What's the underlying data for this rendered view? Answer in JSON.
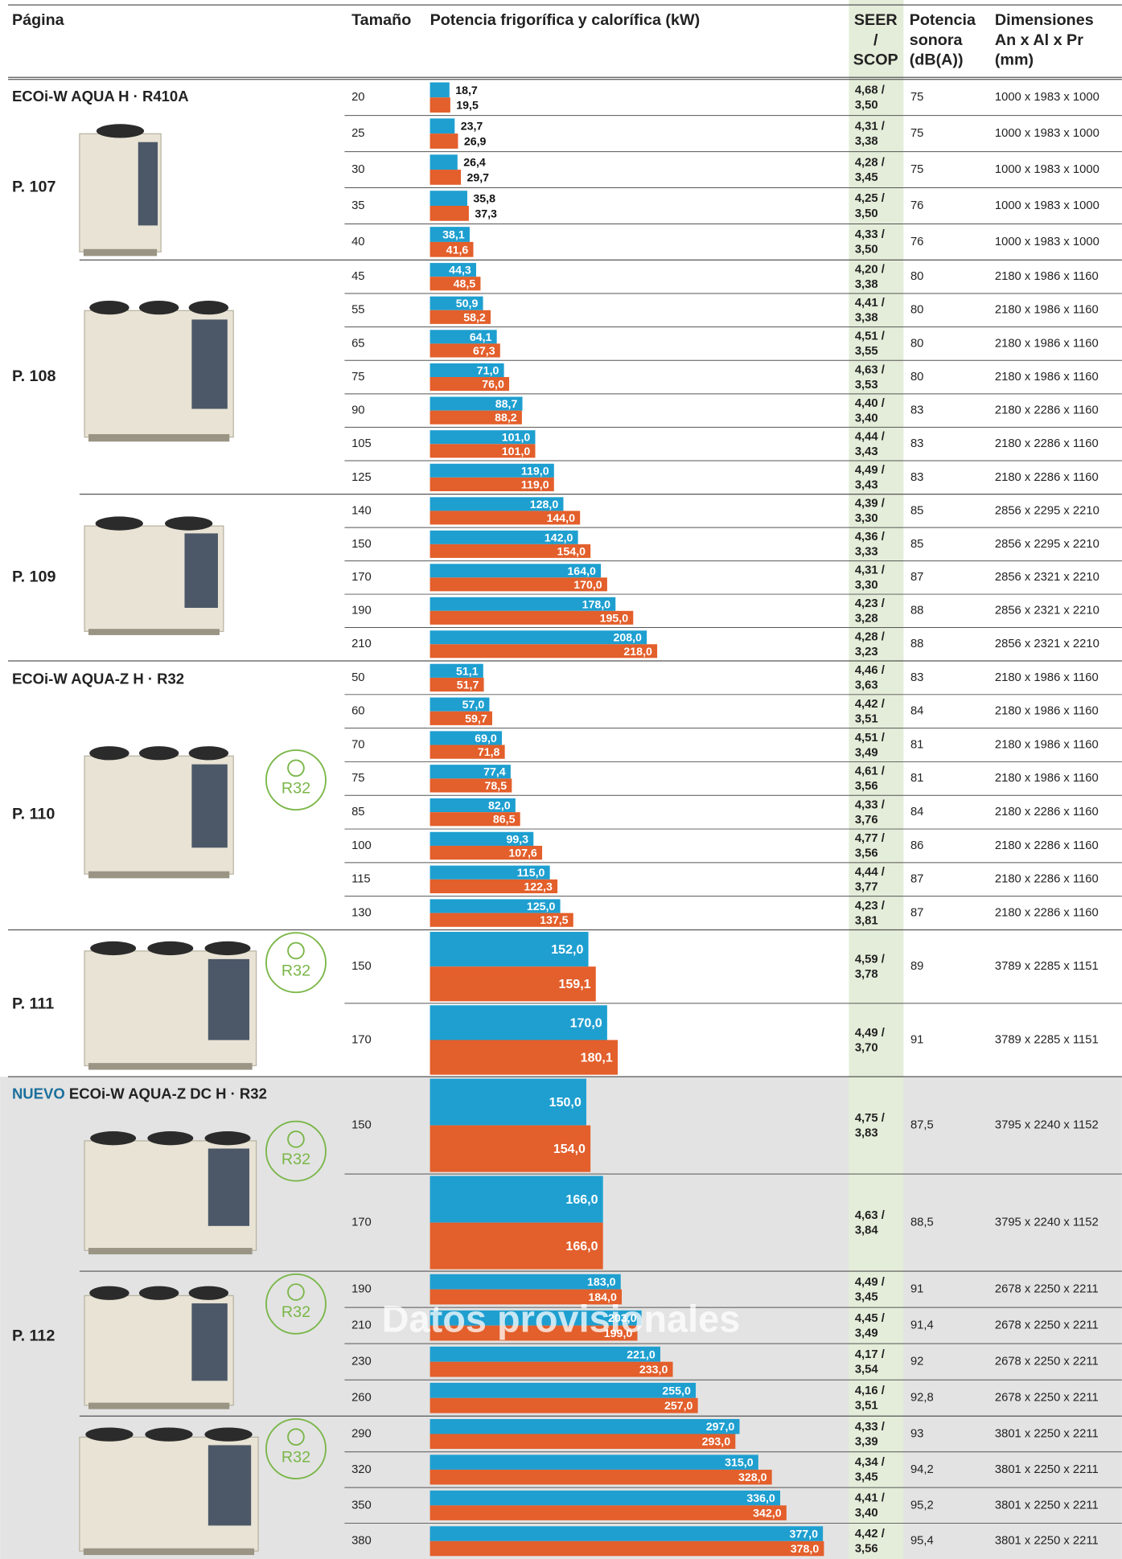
{
  "header": {
    "page": "Página",
    "size": "Tamaño",
    "power": "Potencia frigorífica y calorífica (kW)",
    "seer": [
      "SEER",
      "/",
      "SCOP"
    ],
    "noise": [
      "Potencia",
      "sonora",
      "(dB(A))"
    ],
    "dims": [
      "Dimensiones",
      "An x Al x Pr",
      "(mm)"
    ]
  },
  "groups": [
    {
      "title": "ECOi-W AQUA H · R410A",
      "page": "P. 107",
      "rows": [
        {
          "size": 20,
          "cooling": {
            "value": 18.7,
            "label": "18,7"
          },
          "heating": {
            "value": 19.5,
            "label": "19,5"
          },
          "seer": "4,68 /",
          "scop": "3,50",
          "noise": "75",
          "dims": "1000 x 1983 x 1000"
        },
        {
          "size": 25,
          "cooling": {
            "value": 23.7,
            "label": "23,7"
          },
          "heating": {
            "value": 26.9,
            "label": "26,9"
          },
          "seer": "4,31 /",
          "scop": "3,38",
          "noise": "75",
          "dims": "1000 x 1983 x 1000"
        },
        {
          "size": 30,
          "cooling": {
            "value": 26.4,
            "label": "26,4"
          },
          "heating": {
            "value": 29.7,
            "label": "29,7"
          },
          "seer": "4,28 /",
          "scop": "3,45",
          "noise": "75",
          "dims": "1000 x 1983 x 1000"
        },
        {
          "size": 35,
          "cooling": {
            "value": 35.8,
            "label": "35,8"
          },
          "heating": {
            "value": 37.3,
            "label": "37,3"
          },
          "seer": "4,25 /",
          "scop": "3,50",
          "noise": "76",
          "dims": "1000 x 1983 x 1000"
        },
        {
          "size": 40,
          "cooling": {
            "value": 38.1,
            "label": "38,1"
          },
          "heating": {
            "value": 41.6,
            "label": "41,6"
          },
          "seer": "4,33 /",
          "scop": "3,50",
          "noise": "76",
          "dims": "1000 x 1983 x 1000"
        }
      ]
    },
    {
      "page": "P. 108",
      "rows": [
        {
          "size": 45,
          "cooling": {
            "value": 44.3,
            "label": "44,3"
          },
          "heating": {
            "value": 48.5,
            "label": "48,5"
          },
          "seer": "4,20 /",
          "scop": "3,38",
          "noise": "80",
          "dims": "2180 x 1986 x 1160"
        },
        {
          "size": 55,
          "cooling": {
            "value": 50.9,
            "label": "50,9"
          },
          "heating": {
            "value": 58.2,
            "label": "58,2"
          },
          "seer": "4,41 /",
          "scop": "3,38",
          "noise": "80",
          "dims": "2180 x 1986 x 1160"
        },
        {
          "size": 65,
          "cooling": {
            "value": 64.1,
            "label": "64,1"
          },
          "heating": {
            "value": 67.3,
            "label": "67,3"
          },
          "seer": "4,51 /",
          "scop": "3,55",
          "noise": "80",
          "dims": "2180 x 1986 x 1160"
        },
        {
          "size": 75,
          "cooling": {
            "value": 71.0,
            "label": "71,0"
          },
          "heating": {
            "value": 76.0,
            "label": "76,0"
          },
          "seer": "4,63 /",
          "scop": "3,53",
          "noise": "80",
          "dims": "2180 x 1986 x 1160"
        },
        {
          "size": 90,
          "cooling": {
            "value": 88.7,
            "label": "88,7"
          },
          "heating": {
            "value": 88.2,
            "label": "88,2"
          },
          "seer": "4,40 /",
          "scop": "3,40",
          "noise": "83",
          "dims": "2180 x 2286 x 1160"
        },
        {
          "size": 105,
          "cooling": {
            "value": 101.0,
            "label": "101,0"
          },
          "heating": {
            "value": 101.0,
            "label": "101,0"
          },
          "seer": "4,44 /",
          "scop": "3,43",
          "noise": "83",
          "dims": "2180 x 2286 x 1160"
        },
        {
          "size": 125,
          "cooling": {
            "value": 119.0,
            "label": "119,0"
          },
          "heating": {
            "value": 119.0,
            "label": "119,0"
          },
          "seer": "4,49 /",
          "scop": "3,43",
          "noise": "83",
          "dims": "2180 x 2286 x 1160"
        }
      ]
    },
    {
      "page": "P. 109",
      "rows": [
        {
          "size": 140,
          "cooling": {
            "value": 128.0,
            "label": "128,0"
          },
          "heating": {
            "value": 144.0,
            "label": "144,0"
          },
          "seer": "4,39 /",
          "scop": "3,30",
          "noise": "85",
          "dims": "2856 x 2295 x 2210"
        },
        {
          "size": 150,
          "cooling": {
            "value": 142.0,
            "label": "142,0"
          },
          "heating": {
            "value": 154.0,
            "label": "154,0"
          },
          "seer": "4,36 /",
          "scop": "3,33",
          "noise": "85",
          "dims": "2856 x 2295 x 2210"
        },
        {
          "size": 170,
          "cooling": {
            "value": 164.0,
            "label": "164,0"
          },
          "heating": {
            "value": 170.0,
            "label": "170,0"
          },
          "seer": "4,31 /",
          "scop": "3,30",
          "noise": "87",
          "dims": "2856 x 2321 x 2210"
        },
        {
          "size": 190,
          "cooling": {
            "value": 178.0,
            "label": "178,0"
          },
          "heating": {
            "value": 195.0,
            "label": "195,0"
          },
          "seer": "4,23 /",
          "scop": "3,28",
          "noise": "88",
          "dims": "2856 x 2321 x 2210"
        },
        {
          "size": 210,
          "cooling": {
            "value": 208.0,
            "label": "208,0"
          },
          "heating": {
            "value": 218.0,
            "label": "218,0"
          },
          "seer": "4,28 /",
          "scop": "3,23",
          "noise": "88",
          "dims": "2856 x 2321 x 2210"
        }
      ]
    },
    {
      "title": "ECOi-W AQUA-Z H · R32",
      "page": "P. 110",
      "badge": "R32",
      "rows": [
        {
          "size": 50,
          "cooling": {
            "value": 51.1,
            "label": "51,1"
          },
          "heating": {
            "value": 51.7,
            "label": "51,7"
          },
          "seer": "4,46 /",
          "scop": "3,63",
          "noise": "83",
          "dims": "2180 x 1986 x 1160"
        },
        {
          "size": 60,
          "cooling": {
            "value": 57.0,
            "label": "57,0"
          },
          "heating": {
            "value": 59.7,
            "label": "59,7"
          },
          "seer": "4,42 /",
          "scop": "3,51",
          "noise": "84",
          "dims": "2180 x 1986 x 1160"
        },
        {
          "size": 70,
          "cooling": {
            "value": 69.0,
            "label": "69,0"
          },
          "heating": {
            "value": 71.8,
            "label": "71,8"
          },
          "seer": "4,51 /",
          "scop": "3,49",
          "noise": "81",
          "dims": "2180 x 1986 x 1160"
        },
        {
          "size": 75,
          "cooling": {
            "value": 77.4,
            "label": "77,4"
          },
          "heating": {
            "value": 78.5,
            "label": "78,5"
          },
          "seer": "4,61 /",
          "scop": "3,56",
          "noise": "81",
          "dims": "2180 x 1986 x 1160"
        },
        {
          "size": 85,
          "cooling": {
            "value": 82.0,
            "label": "82,0"
          },
          "heating": {
            "value": 86.5,
            "label": "86,5"
          },
          "seer": "4,33 /",
          "scop": "3,76",
          "noise": "84",
          "dims": "2180 x 2286 x 1160"
        },
        {
          "size": 100,
          "cooling": {
            "value": 99.3,
            "label": "99,3"
          },
          "heating": {
            "value": 107.6,
            "label": "107,6"
          },
          "seer": "4,77 /",
          "scop": "3,56",
          "noise": "86",
          "dims": "2180 x 2286 x 1160"
        },
        {
          "size": 115,
          "cooling": {
            "value": 115.0,
            "label": "115,0"
          },
          "heating": {
            "value": 122.3,
            "label": "122,3"
          },
          "seer": "4,44 /",
          "scop": "3,77",
          "noise": "87",
          "dims": "2180 x 2286 x 1160"
        },
        {
          "size": 130,
          "cooling": {
            "value": 125.0,
            "label": "125,0"
          },
          "heating": {
            "value": 137.5,
            "label": "137,5"
          },
          "seer": "4,23 /",
          "scop": "3,81",
          "noise": "87",
          "dims": "2180 x 2286 x 1160"
        }
      ]
    },
    {
      "page": "P. 111",
      "badge": "R32",
      "rows": [
        {
          "size": 150,
          "cooling": {
            "value": 152.0,
            "label": "152,0"
          },
          "heating": {
            "value": 159.1,
            "label": "159,1"
          },
          "seer": "4,59 /",
          "scop": "3,78",
          "noise": "89",
          "dims": "3789 x 2285 x 1151"
        },
        {
          "size": 170,
          "cooling": {
            "value": 170.0,
            "label": "170,0"
          },
          "heating": {
            "value": 180.1,
            "label": "180,1"
          },
          "seer": "4,49 /",
          "scop": "3,70",
          "noise": "91",
          "dims": "3789 x 2285 x 1151"
        }
      ]
    },
    {
      "tag": "NUEVO",
      "title": "ECOi-W AQUA-Z DC H · R32",
      "badge": "R32",
      "rows": [
        {
          "size": 150,
          "cooling": {
            "value": 150.0,
            "label": "150,0"
          },
          "heating": {
            "value": 154.0,
            "label": "154,0"
          },
          "seer": "4,75 /",
          "scop": "3,83",
          "noise": "87,5",
          "dims": "3795 x 2240 x 1152"
        },
        {
          "size": 170,
          "cooling": {
            "value": 166.0,
            "label": "166,0"
          },
          "heating": {
            "value": 166.0,
            "label": "166,0"
          },
          "seer": "4,63 /",
          "scop": "3,84",
          "noise": "88,5",
          "dims": "3795 x 2240 x 1152"
        }
      ]
    },
    {
      "page": "P. 112",
      "badge": "R32",
      "rows": [
        {
          "size": 190,
          "cooling": {
            "value": 183.0,
            "label": "183,0"
          },
          "heating": {
            "value": 184.0,
            "label": "184,0"
          },
          "seer": "4,49 /",
          "scop": "3,45",
          "noise": "91",
          "dims": "2678 x 2250 x 2211"
        },
        {
          "size": 210,
          "cooling": {
            "value": 203.0,
            "label": "203,0"
          },
          "heating": {
            "value": 199.0,
            "label": "199,0"
          },
          "seer": "4,45 /",
          "scop": "3,49",
          "noise": "91,4",
          "dims": "2678 x 2250 x 2211"
        },
        {
          "size": 230,
          "cooling": {
            "value": 221.0,
            "label": "221,0"
          },
          "heating": {
            "value": 233.0,
            "label": "233,0"
          },
          "seer": "4,17 /",
          "scop": "3,54",
          "noise": "92",
          "dims": "2678 x 2250 x 2211"
        },
        {
          "size": 260,
          "cooling": {
            "value": 255.0,
            "label": "255,0"
          },
          "heating": {
            "value": 257.0,
            "label": "257,0"
          },
          "seer": "4,16 /",
          "scop": "3,51",
          "noise": "92,8",
          "dims": "2678 x 2250 x 2211"
        }
      ]
    },
    {
      "badge": "R32",
      "rows": [
        {
          "size": 290,
          "cooling": {
            "value": 297.0,
            "label": "297,0"
          },
          "heating": {
            "value": 293.0,
            "label": "293,0"
          },
          "seer": "4,33 /",
          "scop": "3,39",
          "noise": "93",
          "dims": "3801 x 2250 x 2211"
        },
        {
          "size": 320,
          "cooling": {
            "value": 315.0,
            "label": "315,0"
          },
          "heating": {
            "value": 328.0,
            "label": "328,0"
          },
          "seer": "4,34 /",
          "scop": "3,45",
          "noise": "94,2",
          "dims": "3801 x 2250 x 2211"
        },
        {
          "size": 350,
          "cooling": {
            "value": 336.0,
            "label": "336,0"
          },
          "heating": {
            "value": 342.0,
            "label": "342,0"
          },
          "seer": "4,41 /",
          "scop": "3,40",
          "noise": "95,2",
          "dims": "3801 x 2250 x 2211"
        },
        {
          "size": 380,
          "cooling": {
            "value": 377.0,
            "label": "377,0"
          },
          "heating": {
            "value": 378.0,
            "label": "378,0"
          },
          "seer": "4,42 /",
          "scop": "3,56",
          "noise": "95,4",
          "dims": "3801 x 2250 x 2211"
        }
      ]
    }
  ],
  "watermark": "Datos provisionales"
}
